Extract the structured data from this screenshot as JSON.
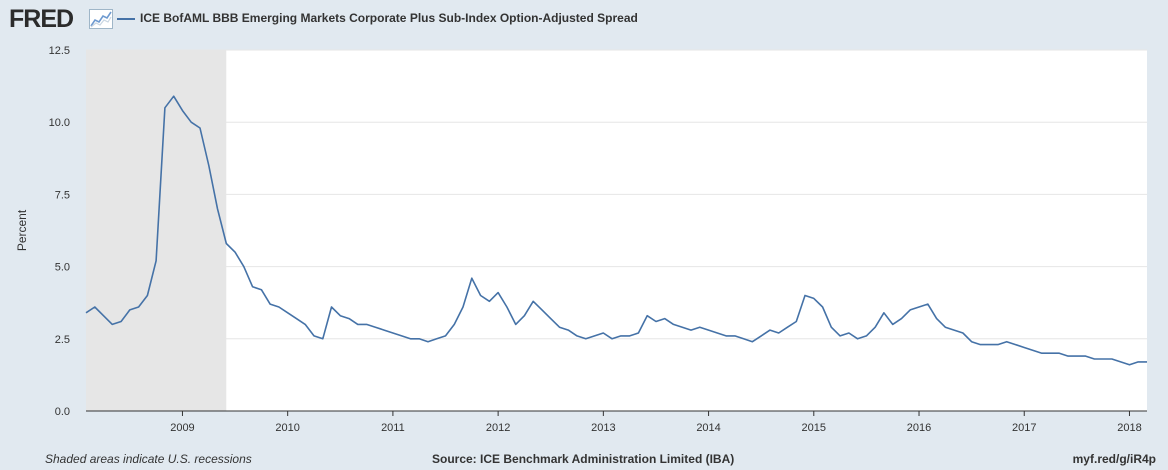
{
  "header": {
    "logo_text": "FRED",
    "logo_icon": "line-chart-icon",
    "legend_label": "ICE BofAML BBB Emerging Markets Corporate Plus Sub-Index Option-Adjusted Spread"
  },
  "footer": {
    "recession_note": "Shaded areas indicate U.S. recessions",
    "source": "Source: ICE Benchmark Administration Limited (IBA)",
    "short_url": "myf.red/g/iR4p"
  },
  "colors": {
    "page_background": "#e1e9f0",
    "plot_background": "#ffffff",
    "line": "#4572a7",
    "recession_shade": "#e6e6e6",
    "grid": "#e6e6e6"
  },
  "chart_data": {
    "type": "line",
    "title": "ICE BofAML BBB Emerging Markets Corporate Plus Sub-Index Option-Adjusted Spread",
    "xlabel": "",
    "ylabel": "Percent",
    "ylim": [
      0,
      12.5
    ],
    "yticks": [
      "0.0",
      "2.5",
      "5.0",
      "7.5",
      "10.0",
      "12.5"
    ],
    "xticks": [
      "2009",
      "2010",
      "2011",
      "2012",
      "2013",
      "2014",
      "2015",
      "2016",
      "2017",
      "2018"
    ],
    "xrange": [
      "2008-02",
      "2018-03"
    ],
    "grid": true,
    "legend_position": "top-left",
    "recessions": [
      {
        "start": "2007-12",
        "end": "2009-06"
      }
    ],
    "series": [
      {
        "name": "ICE BofAML BBB Emerging Markets Corporate Plus Sub-Index Option-Adjusted Spread",
        "x": [
          "2008-02",
          "2008-03",
          "2008-04",
          "2008-05",
          "2008-06",
          "2008-07",
          "2008-08",
          "2008-09",
          "2008-10",
          "2008-11",
          "2008-12",
          "2009-01",
          "2009-02",
          "2009-03",
          "2009-04",
          "2009-05",
          "2009-06",
          "2009-07",
          "2009-08",
          "2009-09",
          "2009-10",
          "2009-11",
          "2009-12",
          "2010-01",
          "2010-02",
          "2010-03",
          "2010-04",
          "2010-05",
          "2010-06",
          "2010-07",
          "2010-08",
          "2010-09",
          "2010-10",
          "2010-11",
          "2010-12",
          "2011-01",
          "2011-02",
          "2011-03",
          "2011-04",
          "2011-05",
          "2011-06",
          "2011-07",
          "2011-08",
          "2011-09",
          "2011-10",
          "2011-11",
          "2011-12",
          "2012-01",
          "2012-02",
          "2012-03",
          "2012-04",
          "2012-05",
          "2012-06",
          "2012-07",
          "2012-08",
          "2012-09",
          "2012-10",
          "2012-11",
          "2012-12",
          "2013-01",
          "2013-02",
          "2013-03",
          "2013-04",
          "2013-05",
          "2013-06",
          "2013-07",
          "2013-08",
          "2013-09",
          "2013-10",
          "2013-11",
          "2013-12",
          "2014-01",
          "2014-02",
          "2014-03",
          "2014-04",
          "2014-05",
          "2014-06",
          "2014-07",
          "2014-08",
          "2014-09",
          "2014-10",
          "2014-11",
          "2014-12",
          "2015-01",
          "2015-02",
          "2015-03",
          "2015-04",
          "2015-05",
          "2015-06",
          "2015-07",
          "2015-08",
          "2015-09",
          "2015-10",
          "2015-11",
          "2015-12",
          "2016-01",
          "2016-02",
          "2016-03",
          "2016-04",
          "2016-05",
          "2016-06",
          "2016-07",
          "2016-08",
          "2016-09",
          "2016-10",
          "2016-11",
          "2016-12",
          "2017-01",
          "2017-02",
          "2017-03",
          "2017-04",
          "2017-05",
          "2017-06",
          "2017-07",
          "2017-08",
          "2017-09",
          "2017-10",
          "2017-11",
          "2017-12",
          "2018-01",
          "2018-02",
          "2018-03"
        ],
        "y": [
          3.4,
          3.6,
          3.3,
          3.0,
          3.1,
          3.5,
          3.6,
          4.0,
          5.2,
          10.5,
          10.9,
          10.4,
          10.0,
          9.8,
          8.5,
          7.0,
          5.8,
          5.5,
          5.0,
          4.3,
          4.2,
          3.7,
          3.6,
          3.4,
          3.2,
          3.0,
          2.6,
          2.5,
          3.6,
          3.3,
          3.2,
          3.0,
          3.0,
          2.9,
          2.8,
          2.7,
          2.6,
          2.5,
          2.5,
          2.4,
          2.5,
          2.6,
          3.0,
          3.6,
          4.6,
          4.0,
          3.8,
          4.1,
          3.6,
          3.0,
          3.3,
          3.8,
          3.5,
          3.2,
          2.9,
          2.8,
          2.6,
          2.5,
          2.6,
          2.7,
          2.5,
          2.6,
          2.6,
          2.7,
          3.3,
          3.1,
          3.2,
          3.0,
          2.9,
          2.8,
          2.9,
          2.8,
          2.7,
          2.6,
          2.6,
          2.5,
          2.4,
          2.6,
          2.8,
          2.7,
          2.9,
          3.1,
          4.0,
          3.9,
          3.6,
          2.9,
          2.6,
          2.7,
          2.5,
          2.6,
          2.9,
          3.4,
          3.0,
          3.2,
          3.5,
          3.6,
          3.7,
          3.2,
          2.9,
          2.8,
          2.7,
          2.4,
          2.3,
          2.3,
          2.3,
          2.4,
          2.3,
          2.2,
          2.1,
          2.0,
          2.0,
          2.0,
          1.9,
          1.9,
          1.9,
          1.8,
          1.8,
          1.8,
          1.7,
          1.6,
          1.7,
          1.7
        ]
      }
    ]
  }
}
